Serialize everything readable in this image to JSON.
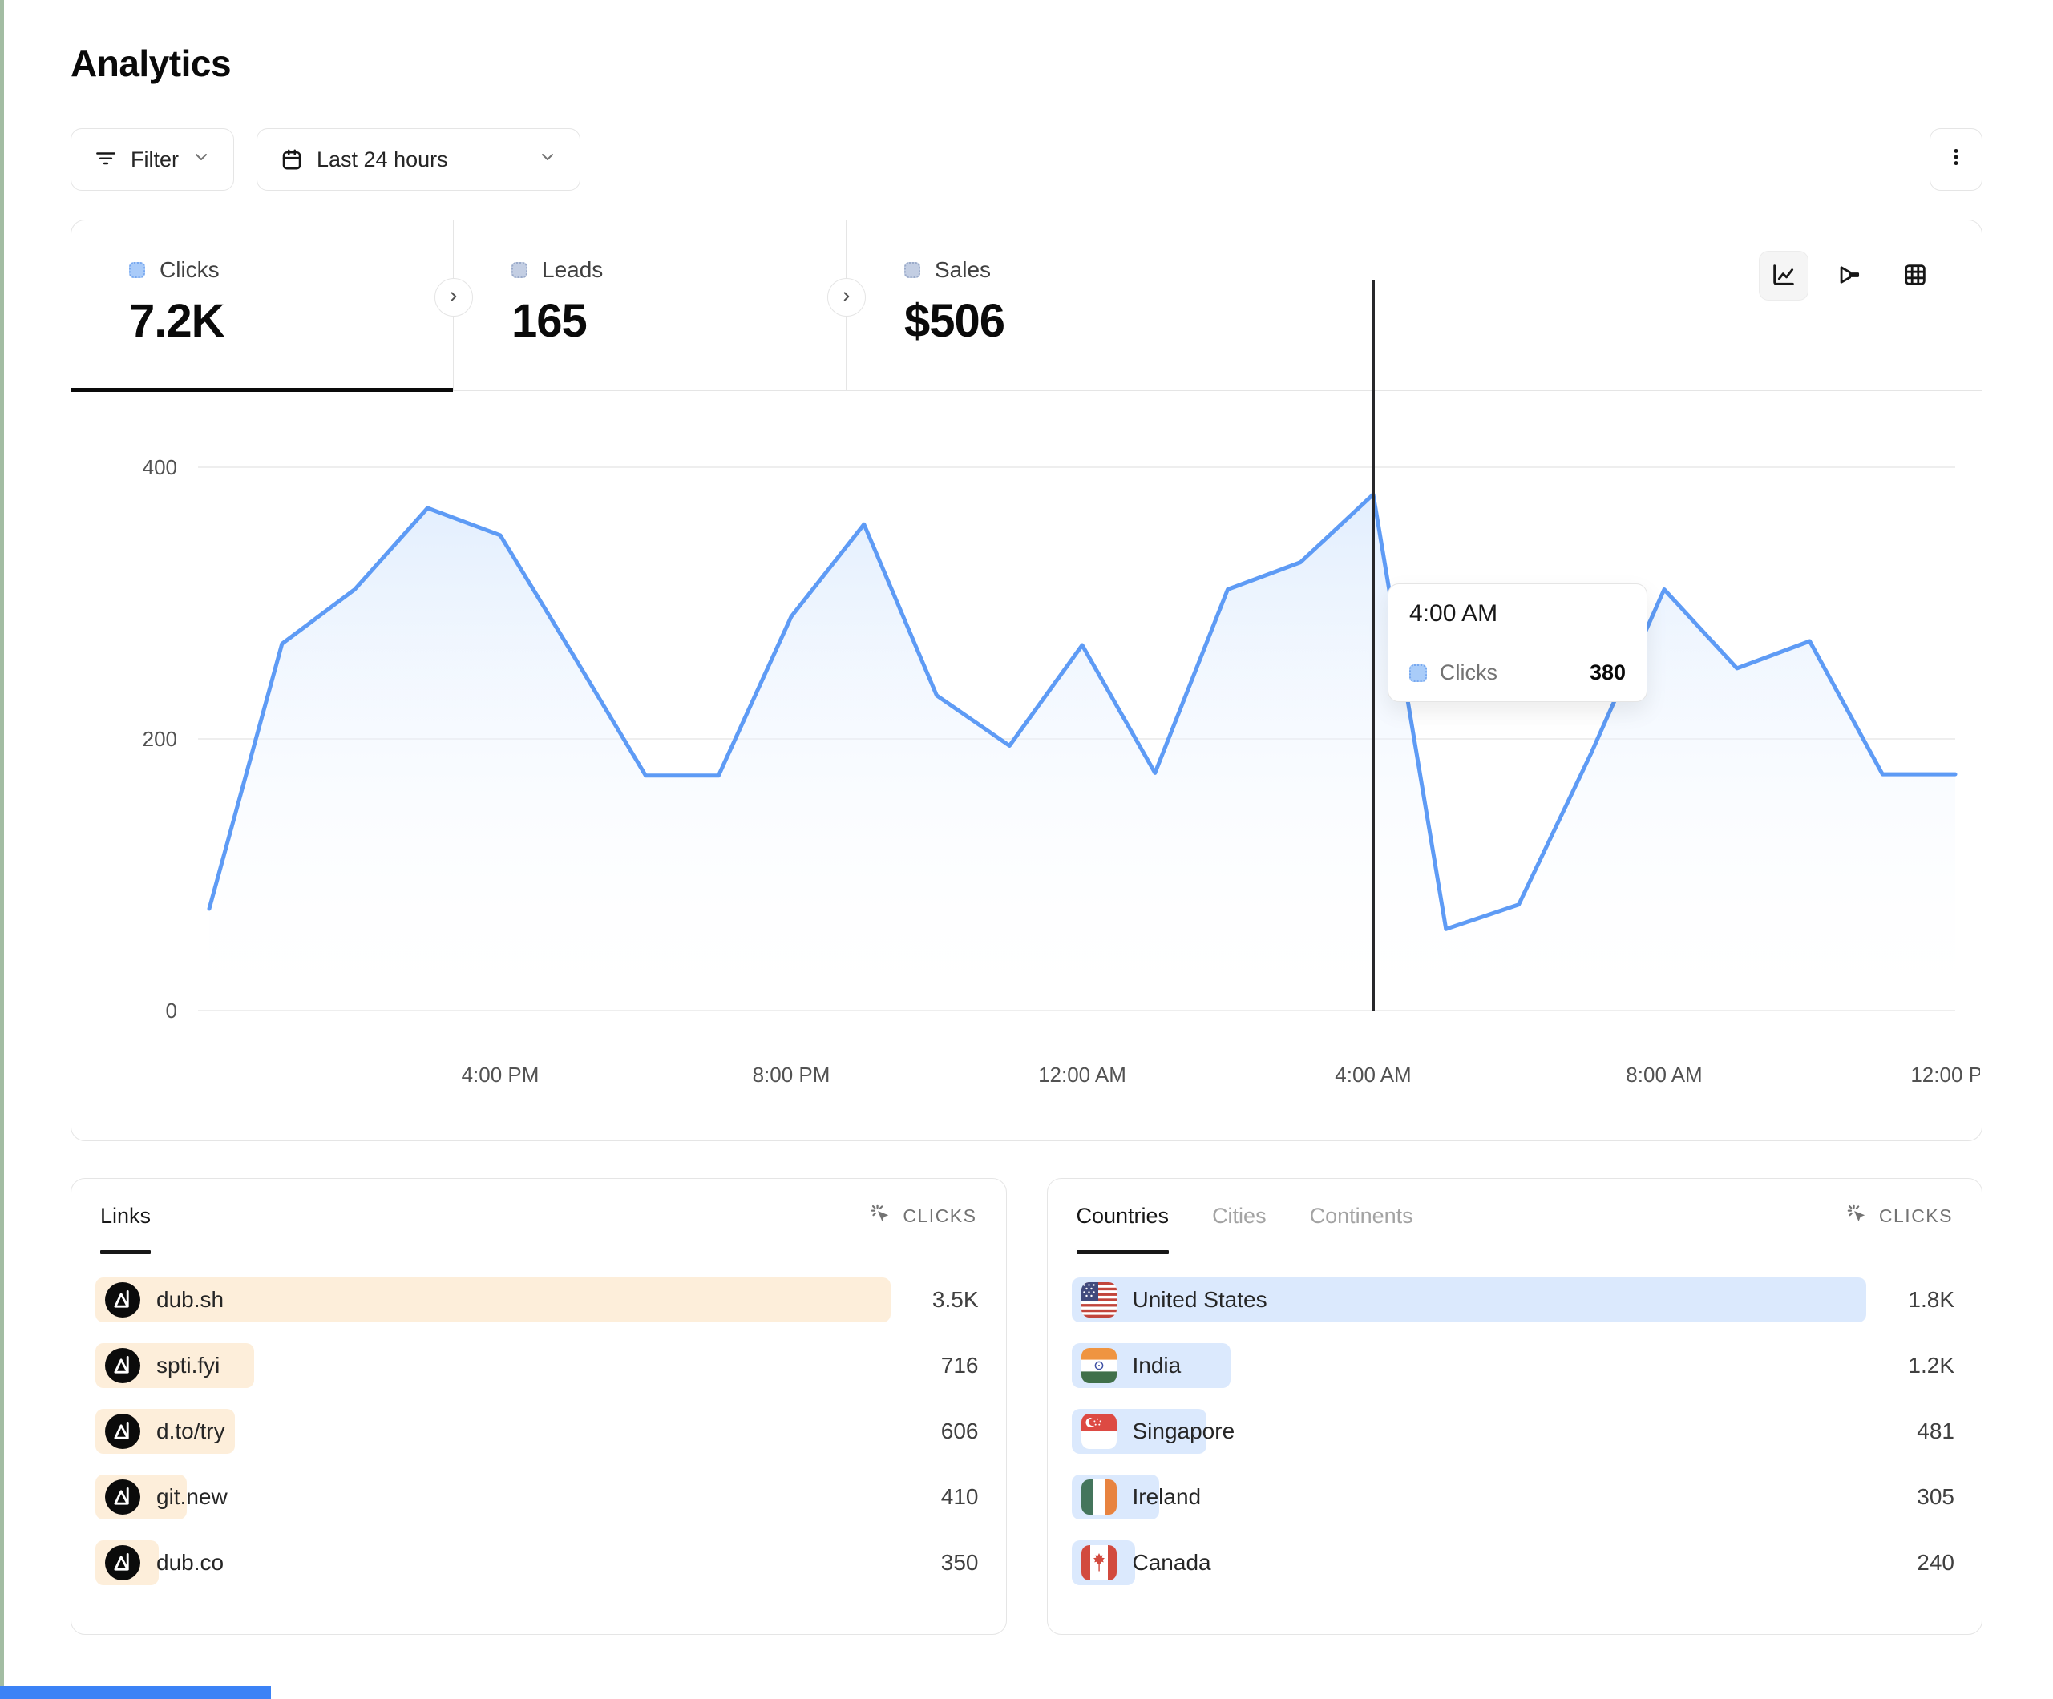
{
  "page": {
    "title": "Analytics"
  },
  "toolbar": {
    "filter": {
      "label": "Filter"
    },
    "date_range": {
      "label": "Last 24 hours"
    }
  },
  "metrics": [
    {
      "label": "Clicks",
      "value": "7.2K",
      "active": true,
      "swatch": "#a9cbf9",
      "swatch_border": "#78a8ef"
    },
    {
      "label": "Leads",
      "value": "165",
      "active": false,
      "swatch": "#c3cee3",
      "swatch_border": "#9aaac9"
    },
    {
      "label": "Sales",
      "value": "$506",
      "active": false,
      "swatch": "#c3cee3",
      "swatch_border": "#9aaac9"
    }
  ],
  "chart_toolbar": [
    {
      "name": "line-chart",
      "active": true
    },
    {
      "name": "funnel",
      "active": false
    },
    {
      "name": "table",
      "active": false
    }
  ],
  "chart_data": {
    "type": "area",
    "series": [
      {
        "name": "Clicks",
        "values": [
          75,
          270,
          310,
          370,
          350,
          262,
          173,
          173,
          290,
          358,
          232,
          195,
          269,
          175,
          310,
          330,
          380,
          60,
          78,
          190,
          310,
          252,
          272,
          174,
          174
        ]
      }
    ],
    "x_hours": [
      "12:00 PM",
      "1:00 PM",
      "2:00 PM",
      "3:00 PM",
      "4:00 PM",
      "5:00 PM",
      "6:00 PM",
      "7:00 PM",
      "8:00 PM",
      "9:00 PM",
      "10:00 PM",
      "11:00 PM",
      "12:00 AM",
      "1:00 AM",
      "2:00 AM",
      "3:00 AM",
      "4:00 AM",
      "5:00 AM",
      "6:00 AM",
      "7:00 AM",
      "8:00 AM",
      "9:00 AM",
      "10:00 AM",
      "11:00 AM",
      "12:00 PM"
    ],
    "x_tick_labels": [
      "4:00 PM",
      "8:00 PM",
      "12:00 AM",
      "4:00 AM",
      "8:00 AM",
      "12:00 PM"
    ],
    "x_tick_indices": [
      4,
      8,
      12,
      16,
      20,
      24
    ],
    "y_ticks": [
      0,
      200,
      400
    ],
    "ylim": [
      0,
      400
    ],
    "grid": true,
    "legend": "none",
    "line_color": "#5e9bf5",
    "area_top_color": "#dbeafe",
    "crosshair_index": 16,
    "tooltip": {
      "time": "4:00 AM",
      "series_label": "Clicks",
      "value": "380"
    }
  },
  "links_panel": {
    "tabs": [
      {
        "label": "Links",
        "active": true
      }
    ],
    "metric_header": "CLICKS",
    "bar_color": "#fdeeda",
    "rows": [
      {
        "label": "dub.sh",
        "value": "3.5K",
        "bar_pct": 100
      },
      {
        "label": "spti.fyi",
        "value": "716",
        "bar_pct": 20
      },
      {
        "label": "d.to/try",
        "value": "606",
        "bar_pct": 17.5
      },
      {
        "label": "git.new",
        "value": "410",
        "bar_pct": 11.5
      },
      {
        "label": "dub.co",
        "value": "350",
        "bar_pct": 8
      }
    ]
  },
  "geo_panel": {
    "tabs": [
      {
        "label": "Countries",
        "active": true
      },
      {
        "label": "Cities",
        "active": false
      },
      {
        "label": "Continents",
        "active": false
      }
    ],
    "metric_header": "CLICKS",
    "bar_color": "#dbe9fd",
    "rows": [
      {
        "label": "United States",
        "value": "1.8K",
        "bar_pct": 100,
        "flag": "us"
      },
      {
        "label": "India",
        "value": "1.2K",
        "bar_pct": 20,
        "flag": "in"
      },
      {
        "label": "Singapore",
        "value": "481",
        "bar_pct": 17,
        "flag": "sg"
      },
      {
        "label": "Ireland",
        "value": "305",
        "bar_pct": 11,
        "flag": "ie"
      },
      {
        "label": "Canada",
        "value": "240",
        "bar_pct": 8,
        "flag": "ca"
      }
    ]
  }
}
